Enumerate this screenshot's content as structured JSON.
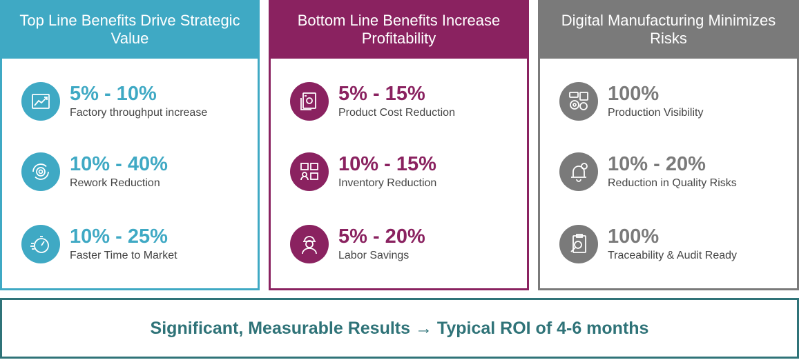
{
  "colors": {
    "teal": "#3fa9c4",
    "plum": "#8a2260",
    "gray": "#7a7a7a",
    "footer": "#2f7378"
  },
  "panels": [
    {
      "title": "Top Line Benefits Drive Strategic Value",
      "items": [
        {
          "metric": "5% - 10%",
          "desc": "Factory throughput increase",
          "icon": "trend-chart-icon"
        },
        {
          "metric": "10% - 40%",
          "desc": "Rework Reduction",
          "icon": "gear-cycle-icon"
        },
        {
          "metric": "10% - 25%",
          "desc": "Faster Time to Market",
          "icon": "stopwatch-icon"
        }
      ]
    },
    {
      "title": "Bottom Line Benefits Increase Profitability",
      "items": [
        {
          "metric": "5% - 15%",
          "desc": "Product Cost Reduction",
          "icon": "money-icon"
        },
        {
          "metric": "10% - 15%",
          "desc": "Inventory Reduction",
          "icon": "boxes-icon"
        },
        {
          "metric": "5% - 20%",
          "desc": "Labor Savings",
          "icon": "worker-icon"
        }
      ]
    },
    {
      "title": "Digital Manufacturing Minimizes Risks",
      "items": [
        {
          "metric": "100%",
          "desc": "Production Visibility",
          "icon": "dashboard-icon"
        },
        {
          "metric": "10% - 20%",
          "desc": "Reduction in Quality Risks",
          "icon": "alarm-bell-icon"
        },
        {
          "metric": "100%",
          "desc": "Traceability & Audit Ready",
          "icon": "clipboard-search-icon"
        }
      ]
    }
  ],
  "footer": {
    "text": "Significant, Measurable Results → Typical ROI of 4-6 months"
  }
}
